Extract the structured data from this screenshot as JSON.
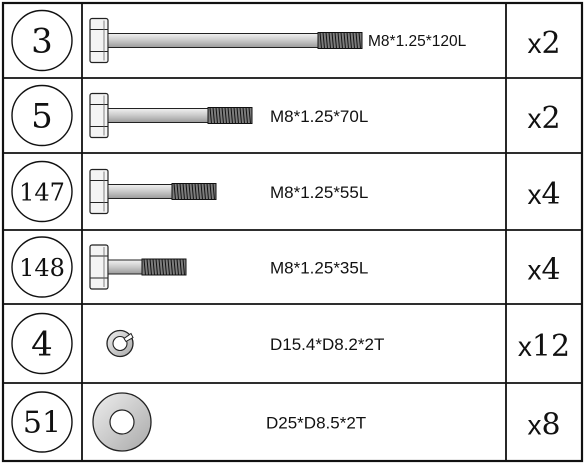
{
  "parts": [
    {
      "number": "3",
      "kind": "bolt",
      "spec": "M8*1.25*120L",
      "qty_prefix": "x",
      "qty_value": "2"
    },
    {
      "number": "5",
      "kind": "bolt",
      "spec": "M8*1.25*70L",
      "qty_prefix": "x",
      "qty_value": "2"
    },
    {
      "number": "147",
      "kind": "bolt",
      "spec": "M8*1.25*55L",
      "qty_prefix": "x",
      "qty_value": "4"
    },
    {
      "number": "148",
      "kind": "bolt",
      "spec": "M8*1.25*35L",
      "qty_prefix": "x",
      "qty_value": "4"
    },
    {
      "number": "4",
      "kind": "split-washer",
      "spec": "D15.4*D8.2*2T",
      "qty_prefix": "x",
      "qty_value": "12"
    },
    {
      "number": "51",
      "kind": "flat-washer",
      "spec": "D25*D8.5*2T",
      "qty_prefix": "x",
      "qty_value": "8"
    }
  ],
  "colors": {
    "border": "#111111",
    "metal_light": "#e6e6e6",
    "metal_mid": "#bdbdbd",
    "metal_dark": "#8a8a8a"
  }
}
